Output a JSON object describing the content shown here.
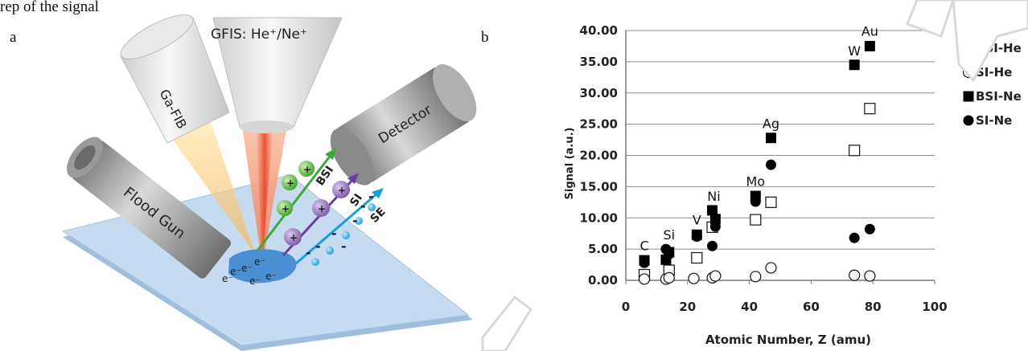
{
  "caption_fragment": "rep                    of the signal",
  "panel_a": {
    "panel_label": "a",
    "gfis_label": "GFIS: He⁺/Ne⁺",
    "gafib_label": "Ga-FIB",
    "detector_label": "Detector",
    "floodgun_label": "Flood Gun",
    "bsi_label": "BSI",
    "si_label": "SI",
    "se_label": "SE",
    "electron_symbol": "e⁻",
    "ion_symbol": "+",
    "charge_minus": "-",
    "colors": {
      "bsi": "#3aaa3a",
      "si": "#6a3f99",
      "se": "#1b9dd9",
      "sample": "#bcd5ee",
      "spot": "#4a8fd2"
    }
  },
  "panel_b": {
    "panel_label": "b"
  },
  "chart_data": {
    "type": "scatter",
    "title": "",
    "xlabel": "Atomic Number, Z (amu)",
    "ylabel": "Signal (a.u.)",
    "xlim": [
      0,
      100
    ],
    "ylim": [
      0,
      40
    ],
    "xticks": [
      "0",
      "20",
      "40",
      "60",
      "80",
      "100"
    ],
    "yticks": [
      "0.00",
      "5.00",
      "10.00",
      "15.00",
      "20.00",
      "25.00",
      "30.00",
      "35.00",
      "40.00"
    ],
    "grid": "horizontal",
    "legend_position": "right",
    "series": [
      {
        "name": "BSI-He",
        "marker": "open-square",
        "points": [
          [
            6,
            0.9
          ],
          [
            14,
            1.6
          ],
          [
            23,
            3.6
          ],
          [
            28,
            8.5
          ],
          [
            42,
            9.7
          ],
          [
            47,
            12.5
          ],
          [
            74,
            20.8
          ],
          [
            79,
            27.5
          ]
        ]
      },
      {
        "name": "SI-He",
        "marker": "open-circle",
        "points": [
          [
            6,
            0.2
          ],
          [
            13,
            0.2
          ],
          [
            14,
            0.4
          ],
          [
            22,
            0.3
          ],
          [
            28,
            0.4
          ],
          [
            29,
            0.7
          ],
          [
            42,
            0.6
          ],
          [
            47,
            2.0
          ],
          [
            74,
            0.8
          ],
          [
            79,
            0.7
          ]
        ]
      },
      {
        "name": "BSI-Ne",
        "marker": "filled-square",
        "points": [
          [
            6,
            3.2
          ],
          [
            13,
            3.3
          ],
          [
            14,
            4.5
          ],
          [
            23,
            7.3
          ],
          [
            28,
            11.2
          ],
          [
            29,
            9.8
          ],
          [
            42,
            13.5
          ],
          [
            47,
            22.8
          ],
          [
            74,
            34.5
          ],
          [
            79,
            37.5
          ]
        ]
      },
      {
        "name": "SI-Ne",
        "marker": "filled-circle",
        "points": [
          [
            6,
            2.8
          ],
          [
            13,
            5.0
          ],
          [
            14,
            4.2
          ],
          [
            23,
            7.0
          ],
          [
            28,
            5.5
          ],
          [
            29,
            8.6
          ],
          [
            42,
            12.6
          ],
          [
            47,
            18.5
          ],
          [
            74,
            6.8
          ],
          [
            79,
            8.2
          ]
        ]
      }
    ],
    "annotations": [
      {
        "text": "C",
        "x": 6,
        "y": 3.3
      },
      {
        "text": "Si",
        "x": 14,
        "y": 5.0
      },
      {
        "text": "V",
        "x": 23,
        "y": 7.4
      },
      {
        "text": "Ni",
        "x": 28.5,
        "y": 11.2
      },
      {
        "text": "Mo",
        "x": 42,
        "y": 13.6
      },
      {
        "text": "Ag",
        "x": 47,
        "y": 22.8
      },
      {
        "text": "W",
        "x": 74,
        "y": 34.5
      },
      {
        "text": "Au",
        "x": 79,
        "y": 37.6
      }
    ]
  }
}
